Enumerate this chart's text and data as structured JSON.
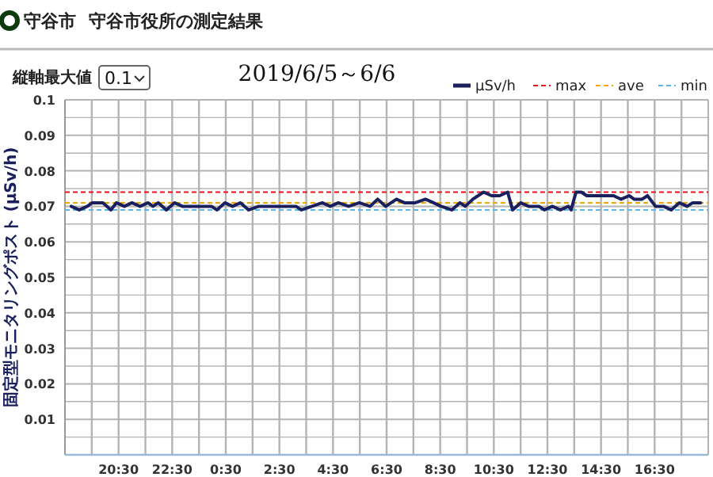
{
  "chart_data": {
    "type": "line",
    "title": "2019/6/5～6/6",
    "ylabel": "固定型モニタリングポスト (μSv/h)",
    "annotations": [
      "守谷市",
      "守谷市役所の測定結果",
      "縦軸最大値",
      "0.1"
    ],
    "x": [
      "2019-06-05T18:44",
      "2019-06-05T19:02",
      "2019-06-05T19:20",
      "2019-06-05T19:31",
      "2019-06-05T19:55",
      "2019-06-05T20:13",
      "2019-06-05T20:25",
      "2019-06-05T20:43",
      "2019-06-05T21:00",
      "2019-06-05T21:18",
      "2019-06-05T21:36",
      "2019-06-05T21:47",
      "2019-06-05T21:59",
      "2019-06-05T22:17",
      "2019-06-05T22:35",
      "2019-06-05T22:53",
      "2019-06-05T23:58",
      "2019-06-06T00:10",
      "2019-06-06T00:28",
      "2019-06-06T00:45",
      "2019-06-06T01:03",
      "2019-06-06T01:21",
      "2019-06-06T01:44",
      "2019-06-06T03:07",
      "2019-06-06T03:19",
      "2019-06-06T03:43",
      "2019-06-06T04:06",
      "2019-06-06T04:24",
      "2019-06-06T04:42",
      "2019-06-06T05:05",
      "2019-06-06T05:29",
      "2019-06-06T05:53",
      "2019-06-06T06:10",
      "2019-06-06T06:28",
      "2019-06-06T06:52",
      "2019-06-06T07:10",
      "2019-06-06T07:34",
      "2019-06-06T07:57",
      "2019-06-06T08:15",
      "2019-06-06T08:32",
      "2019-06-06T08:56",
      "2019-06-06T09:14",
      "2019-06-06T09:26",
      "2019-06-06T09:43",
      "2019-06-06T10:07",
      "2019-06-06T10:25",
      "2019-06-06T10:43",
      "2019-06-06T11:01",
      "2019-06-06T11:12",
      "2019-06-06T11:30",
      "2019-06-06T11:48",
      "2019-06-06T12:11",
      "2019-06-06T12:23",
      "2019-06-06T12:41",
      "2019-06-06T12:59",
      "2019-06-06T13:17",
      "2019-06-06T13:23",
      "2019-06-06T13:34",
      "2019-06-06T13:46",
      "2019-06-06T13:58",
      "2019-06-06T14:58",
      "2019-06-06T15:15",
      "2019-06-06T15:33",
      "2019-06-06T15:44",
      "2019-06-06T16:02",
      "2019-06-06T16:14",
      "2019-06-06T16:32",
      "2019-06-06T16:50",
      "2019-06-06T17:07",
      "2019-06-06T17:25",
      "2019-06-06T17:43",
      "2019-06-06T17:55",
      "2019-06-06T18:13"
    ],
    "series": [
      {
        "name": "μSv/h",
        "color": "#1a1f5e",
        "values": [
          0.07,
          0.069,
          0.07,
          0.071,
          0.071,
          0.069,
          0.071,
          0.07,
          0.071,
          0.07,
          0.071,
          0.07,
          0.071,
          0.069,
          0.071,
          0.07,
          0.07,
          0.069,
          0.071,
          0.07,
          0.071,
          0.069,
          0.07,
          0.07,
          0.069,
          0.07,
          0.071,
          0.07,
          0.071,
          0.07,
          0.071,
          0.07,
          0.072,
          0.07,
          0.072,
          0.071,
          0.071,
          0.072,
          0.071,
          0.07,
          0.069,
          0.071,
          0.07,
          0.072,
          0.074,
          0.073,
          0.073,
          0.074,
          0.069,
          0.071,
          0.07,
          0.07,
          0.069,
          0.07,
          0.069,
          0.07,
          0.069,
          0.074,
          0.074,
          0.073,
          0.073,
          0.072,
          0.073,
          0.072,
          0.072,
          0.073,
          0.07,
          0.07,
          0.069,
          0.071,
          0.07,
          0.071,
          0.071
        ]
      }
    ],
    "ref_lines": [
      {
        "axis": "y",
        "value": 0.074,
        "label": "max",
        "color": "#e8141e",
        "line_style": "dashed"
      },
      {
        "axis": "y",
        "value": 0.071,
        "label": "ave",
        "color": "#f5a300",
        "line_style": "dashed"
      },
      {
        "axis": "y",
        "value": 0.069,
        "label": "min",
        "color": "#5bb8e6",
        "line_style": "dashed"
      }
    ],
    "xlim": [
      "2019-06-05T18:30",
      "2019-06-06T18:30"
    ],
    "xticks": [
      {
        "value": "2019-06-05T19:30",
        "label": null
      },
      {
        "value": "2019-06-05T20:30",
        "label": "20:30"
      },
      {
        "value": "2019-06-05T21:30",
        "label": null
      },
      {
        "value": "2019-06-05T22:30",
        "label": "22:30"
      },
      {
        "value": "2019-06-05T23:30",
        "label": null
      },
      {
        "value": "2019-06-06T00:30",
        "label": "0:30"
      },
      {
        "value": "2019-06-06T01:30",
        "label": null
      },
      {
        "value": "2019-06-06T02:30",
        "label": "2:30"
      },
      {
        "value": "2019-06-06T03:30",
        "label": null
      },
      {
        "value": "2019-06-06T04:30",
        "label": "4:30"
      },
      {
        "value": "2019-06-06T05:30",
        "label": null
      },
      {
        "value": "2019-06-06T06:30",
        "label": "6:30"
      },
      {
        "value": "2019-06-06T07:30",
        "label": null
      },
      {
        "value": "2019-06-06T08:30",
        "label": "8:30"
      },
      {
        "value": "2019-06-06T09:30",
        "label": null
      },
      {
        "value": "2019-06-06T10:30",
        "label": "10:30"
      },
      {
        "value": "2019-06-06T11:30",
        "label": null
      },
      {
        "value": "2019-06-06T12:30",
        "label": "12:30"
      },
      {
        "value": "2019-06-06T13:30",
        "label": null
      },
      {
        "value": "2019-06-06T14:30",
        "label": "14:30"
      },
      {
        "value": "2019-06-06T15:30",
        "label": null
      },
      {
        "value": "2019-06-06T16:30",
        "label": "16:30"
      },
      {
        "value": "2019-06-06T17:30",
        "label": null
      }
    ],
    "ylim": [
      0,
      0.1
    ],
    "yticks": [
      {
        "value": 0,
        "label": null
      },
      {
        "value": 0.005,
        "label": null
      },
      0.01,
      {
        "value": 0.015,
        "label": null
      },
      0.02,
      {
        "value": 0.025,
        "label": null
      },
      0.03,
      {
        "value": 0.035,
        "label": null
      },
      0.04,
      {
        "value": 0.045,
        "label": null
      },
      0.05,
      {
        "value": 0.055,
        "label": null
      },
      0.06,
      {
        "value": 0.065,
        "label": null
      },
      0.07,
      {
        "value": 0.075,
        "label": null
      },
      0.08,
      {
        "value": 0.085,
        "label": null
      },
      0.09,
      {
        "value": 0.095,
        "label": null
      },
      0.1
    ],
    "grid": true,
    "legend": "top right",
    "marker": "none",
    "line_style": "solid"
  }
}
